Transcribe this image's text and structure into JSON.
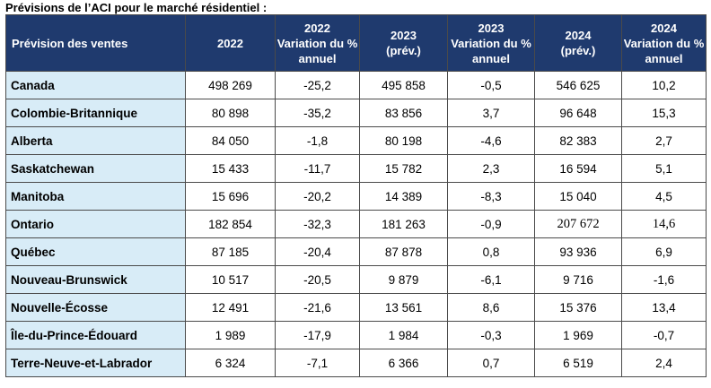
{
  "title": "Prévisions de l’ACI pour le marché résidentiel :",
  "header": {
    "col0": "Prévision des ventes",
    "col1": "2022",
    "col2": [
      "2022",
      "Variation du %",
      "annuel"
    ],
    "col3": [
      "2023",
      "(prév.)"
    ],
    "col4": [
      "2023",
      "Variation du %",
      "annuel"
    ],
    "col5": [
      "2024",
      "(prév.)"
    ],
    "col6": [
      "2024",
      "Variation du %",
      "annuel"
    ]
  },
  "rows": [
    [
      "Canada",
      "498 269",
      "-25,2",
      "495 858",
      "-0,5",
      "546 625",
      "10,2"
    ],
    [
      "Colombie-Britannique",
      "80 898",
      "-35,2",
      "83 856",
      "3,7",
      "96 648",
      "15,3"
    ],
    [
      "Alberta",
      "84 050",
      "-1,8",
      "80 198",
      "-4,6",
      "82 383",
      "2,7"
    ],
    [
      "Saskatchewan",
      "15 433",
      "-11,7",
      "15 782",
      "2,3",
      "16 594",
      "5,1"
    ],
    [
      "Manitoba",
      "15 696",
      "-20,2",
      "14 389",
      "-8,3",
      "15 040",
      "4,5"
    ],
    [
      "Ontario",
      "182 854",
      "-32,3",
      "181 263",
      "-0,9",
      "207 672",
      "14,6"
    ],
    [
      "Québec",
      "87 185",
      "-20,4",
      "87 878",
      "0,8",
      "93 936",
      "6,9"
    ],
    [
      "Nouveau-Brunswick",
      "10 517",
      "-20,5",
      "9 879",
      "-6,1",
      "9 716",
      "-1,6"
    ],
    [
      "Nouvelle-Écosse",
      "12 491",
      "-21,6",
      "13 561",
      "8,6",
      "15 376",
      "13,4"
    ],
    [
      "Île-du-Prince-Édouard",
      "1 989",
      "-17,9",
      "1 984",
      "-0,3",
      "1 969",
      "-0,7"
    ],
    [
      "Terre-Neuve-et-Labrador",
      "6 324",
      "-7,1",
      "6 366",
      "0,7",
      "6 519",
      "2,4"
    ]
  ]
}
